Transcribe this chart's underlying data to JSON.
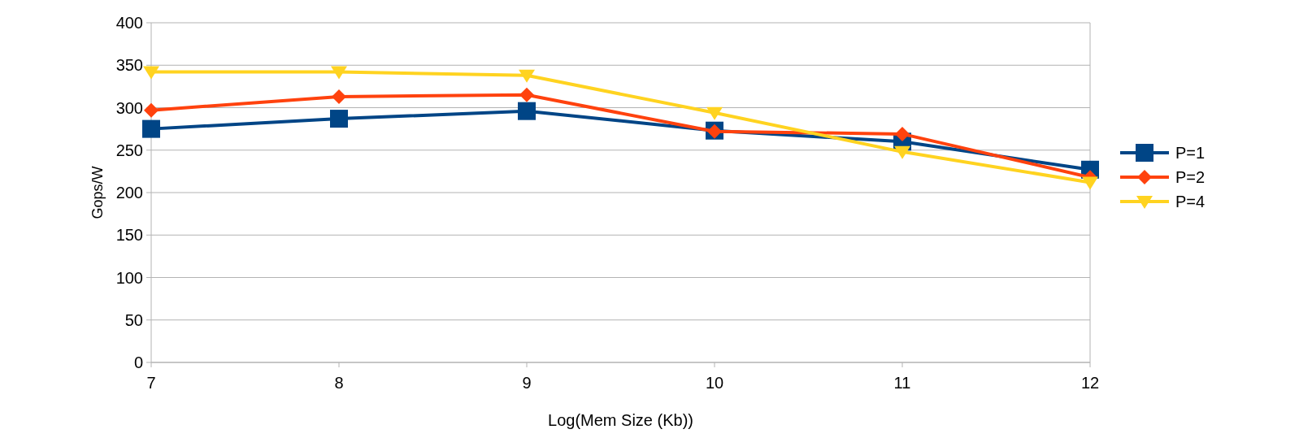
{
  "chart_data": {
    "type": "line",
    "xlabel": "Log(Mem Size (Kb))",
    "ylabel": "Gops/W",
    "x": [
      7,
      8,
      9,
      10,
      11,
      12
    ],
    "xlim": [
      7,
      12
    ],
    "xticks": [
      7,
      8,
      9,
      10,
      11,
      12
    ],
    "ylim": [
      0,
      400
    ],
    "yticks": [
      0,
      50,
      100,
      150,
      200,
      250,
      300,
      350,
      400
    ],
    "grid": "y",
    "legend": "right",
    "series": [
      {
        "name": "P=1",
        "color": "#004586",
        "marker": "square",
        "values": [
          275,
          287,
          296,
          273,
          260,
          227
        ]
      },
      {
        "name": "P=2",
        "color": "#ff420e",
        "marker": "diamond",
        "values": [
          297,
          313,
          315,
          272,
          269,
          218
        ]
      },
      {
        "name": "P=4",
        "color": "#ffd320",
        "marker": "triangle",
        "values": [
          342,
          342,
          338,
          294,
          248,
          212
        ]
      }
    ]
  }
}
